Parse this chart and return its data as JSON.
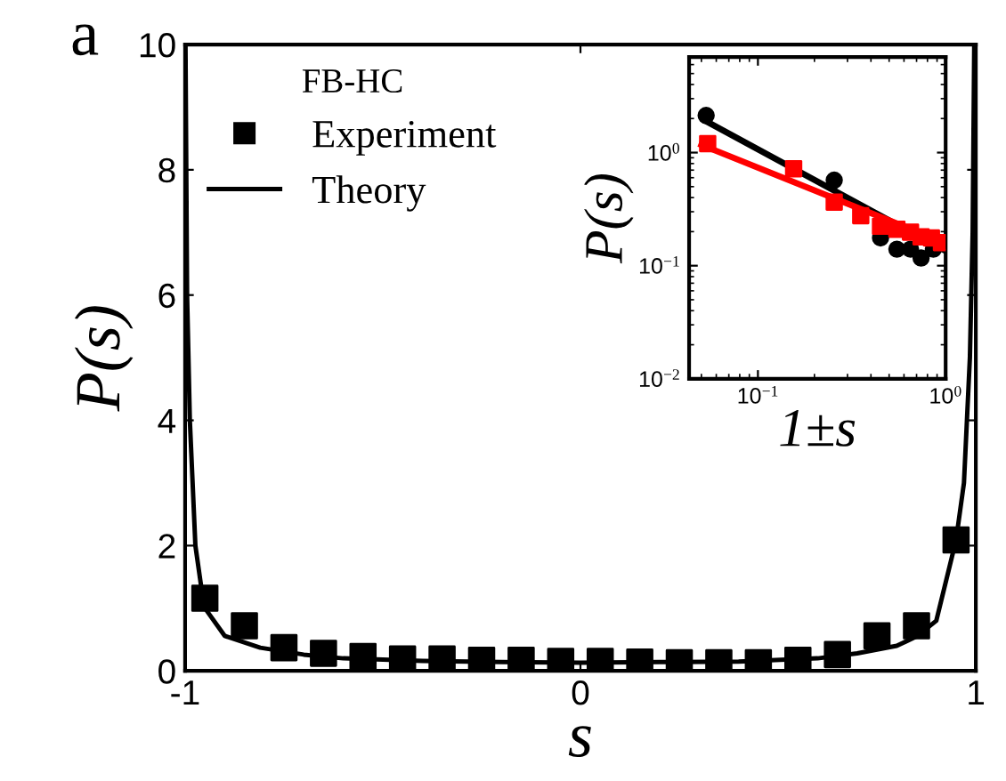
{
  "chart_data": [
    {
      "type": "scatter",
      "xlabel": "s",
      "ylabel": "P(s)",
      "legend_title": "FB-HC",
      "legend": "top left",
      "grid": false,
      "annotations": [
        "a"
      ],
      "xlim": [
        -1,
        1
      ],
      "xticks": [
        -1,
        0,
        1
      ],
      "ylim": [
        0,
        10
      ],
      "yticks": [
        0,
        2,
        4,
        6,
        8,
        10
      ],
      "series": [
        {
          "name": "Experiment",
          "marker": "square",
          "color": "#000000",
          "x": [
            -0.95,
            -0.85,
            -0.75,
            -0.65,
            -0.55,
            -0.45,
            -0.35,
            -0.25,
            -0.15,
            -0.05,
            0.05,
            0.15,
            0.25,
            0.35,
            0.45,
            0.55,
            0.65,
            0.75,
            0.85,
            0.95
          ],
          "values": [
            1.16,
            0.72,
            0.37,
            0.28,
            0.23,
            0.19,
            0.19,
            0.17,
            0.17,
            0.15,
            0.15,
            0.14,
            0.13,
            0.13,
            0.13,
            0.17,
            0.26,
            0.56,
            0.72,
            2.09
          ]
        },
        {
          "name": "Theory",
          "type": "line",
          "marker": "none",
          "line_style": "solid",
          "color": "#000000",
          "x": [
            -0.999,
            -0.995,
            -0.988,
            -0.974,
            -0.952,
            -0.9,
            -0.81,
            -0.7,
            -0.6,
            -0.4,
            -0.2,
            0,
            0.2,
            0.4,
            0.6,
            0.7,
            0.8,
            0.85,
            0.9,
            0.95,
            0.97,
            0.985,
            0.992,
            0.996
          ],
          "values": [
            10,
            6,
            4,
            2,
            1.02,
            0.56,
            0.37,
            0.26,
            0.2,
            0.16,
            0.14,
            0.13,
            0.14,
            0.15,
            0.2,
            0.28,
            0.4,
            0.55,
            0.8,
            2.09,
            3,
            5,
            7,
            10
          ]
        }
      ]
    },
    {
      "type": "scatter",
      "xlabel": "1±s",
      "ylabel": "P(s)",
      "log": "xy",
      "grid": false,
      "legend": false,
      "xlim": [
        0.043,
        1
      ],
      "xticks": [
        {
          "value": 0.1,
          "label": "10$^{−1}$"
        },
        {
          "value": 1,
          "label": "10$^{0}$"
        }
      ],
      "ylim": [
        0.01,
        7
      ],
      "yticks": [
        {
          "value": 0.01,
          "label": "10$^{−2}$"
        },
        {
          "value": 0.1,
          "label": "10$^{−1}$"
        },
        {
          "value": 1,
          "label": "10$^{0}$"
        }
      ],
      "series": [
        {
          "type": "line",
          "marker": "none",
          "line_style": "solid",
          "color": "#000000",
          "x": [
            0.053,
            1.0
          ],
          "values": [
            1.89,
            0.135
          ]
        },
        {
          "type": "line",
          "marker": "none",
          "line_style": "solid",
          "color": "#ff0000",
          "x": [
            0.05,
            1.0
          ],
          "values": [
            1.17,
            0.158
          ]
        },
        {
          "marker": "circle",
          "color": "#000000",
          "x": [
            0.053,
            0.255,
            0.45,
            0.55,
            0.65,
            0.74,
            0.86
          ],
          "values": [
            2.13,
            0.57,
            0.176,
            0.14,
            0.14,
            0.117,
            0.14
          ]
        },
        {
          "marker": "square",
          "color": "#ff0000",
          "x": [
            0.054,
            0.155,
            0.255,
            0.353,
            0.45,
            0.55,
            0.65,
            0.74,
            0.84,
            0.95
          ],
          "values": [
            1.2,
            0.72,
            0.365,
            0.277,
            0.223,
            0.21,
            0.198,
            0.18,
            0.176,
            0.16
          ]
        }
      ]
    }
  ]
}
